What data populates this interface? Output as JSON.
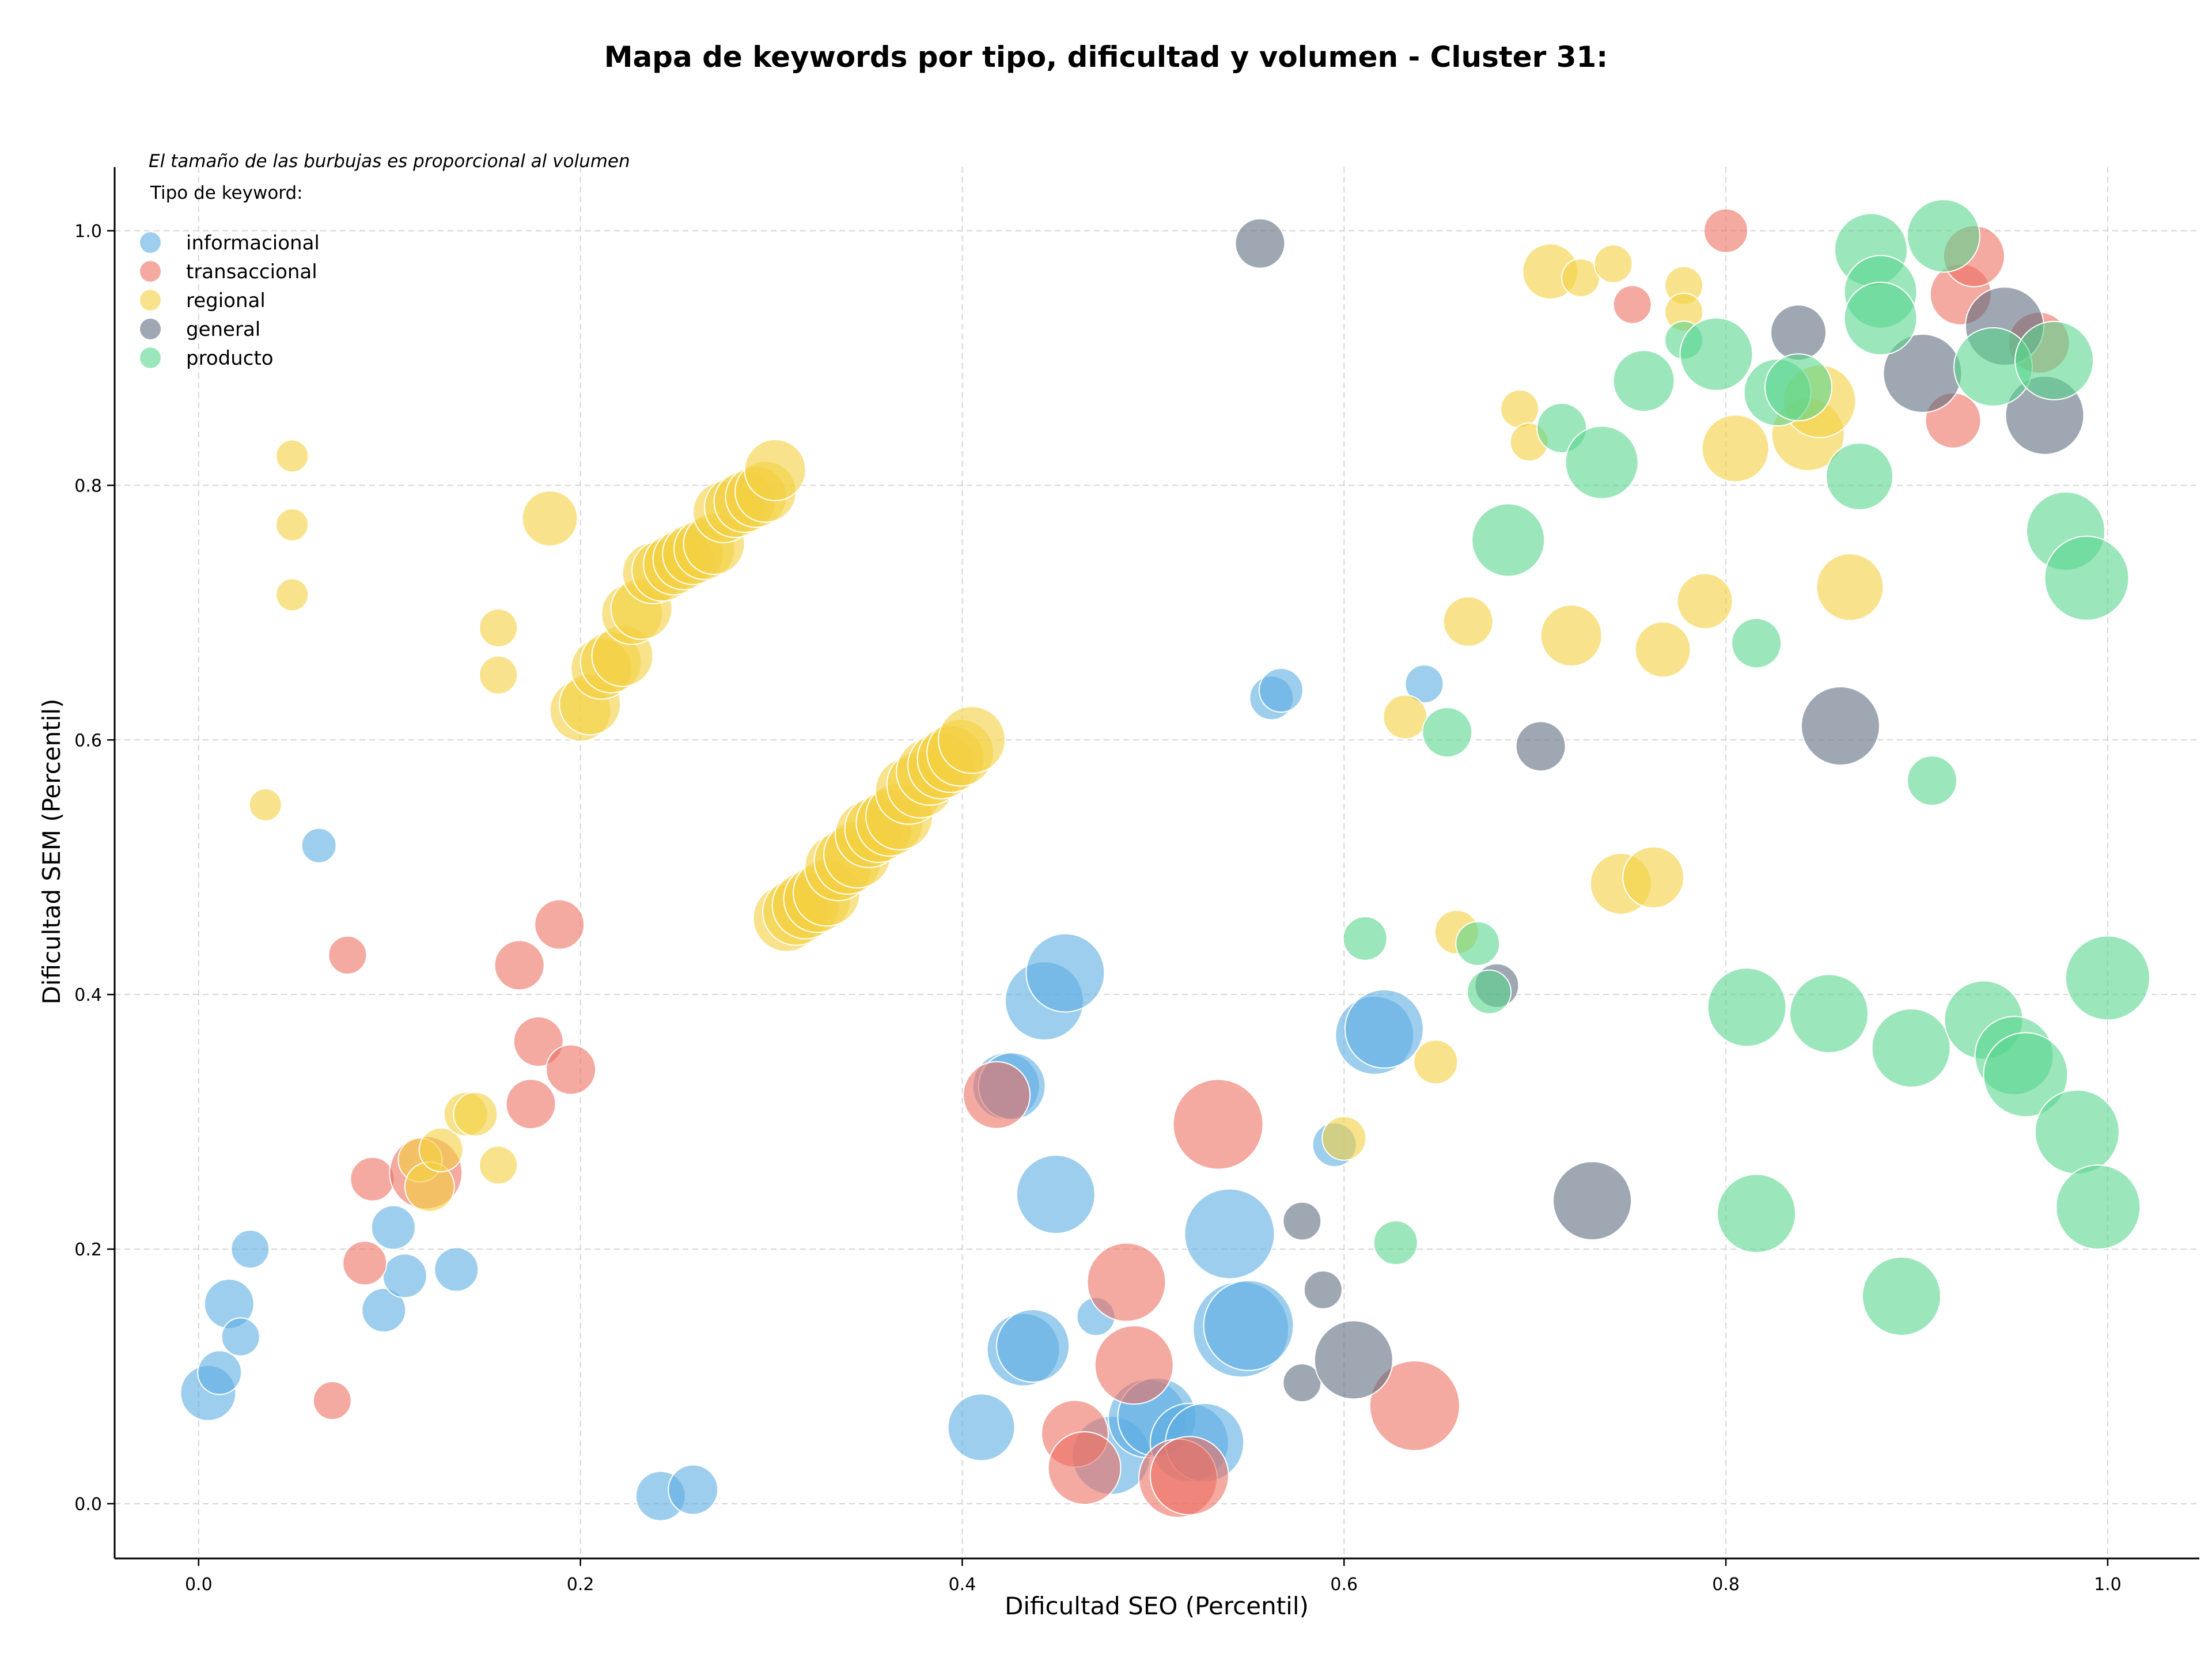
{
  "chart_data": {
    "type": "scatter",
    "title": "Mapa de keywords por tipo, dificultad y volumen - Cluster 31:",
    "xlabel": "Dificultad SEO (Percentil)",
    "ylabel": "Dificultad SEM (Percentil)",
    "xlim": [
      -0.044,
      1.048
    ],
    "ylim": [
      -0.043,
      1.05
    ],
    "xticks": [
      "0.0",
      "0.2",
      "0.4",
      "0.6",
      "0.8",
      "1.0"
    ],
    "yticks": [
      "0.0",
      "0.2",
      "0.4",
      "0.6",
      "0.8",
      "1.0"
    ],
    "grid": true,
    "note": "El tamaño de las burbujas es proporcional al volumen",
    "legend": {
      "title": "Tipo de keyword:",
      "placement": "top-left"
    },
    "series": [
      {
        "name": "informacional",
        "color": "#5DADE2",
        "points": [
          [
            0.005,
            0.087,
            3
          ],
          [
            0.011,
            0.103,
            2
          ],
          [
            0.016,
            0.157,
            2.5
          ],
          [
            0.022,
            0.131,
            1.5
          ],
          [
            0.027,
            0.2,
            1.5
          ],
          [
            0.063,
            0.517,
            1.2
          ],
          [
            0.097,
            0.152,
            2
          ],
          [
            0.102,
            0.217,
            2
          ],
          [
            0.108,
            0.179,
            2
          ],
          [
            0.135,
            0.184,
            2
          ],
          [
            0.242,
            0.006,
            2.5
          ],
          [
            0.259,
            0.011,
            2.5
          ],
          [
            0.41,
            0.06,
            4
          ],
          [
            0.423,
            0.328,
            4
          ],
          [
            0.426,
            0.328,
            4
          ],
          [
            0.432,
            0.121,
            4.5
          ],
          [
            0.437,
            0.124,
            4.5
          ],
          [
            0.443,
            0.395,
            5
          ],
          [
            0.454,
            0.417,
            5
          ],
          [
            0.449,
            0.243,
            5
          ],
          [
            0.47,
            0.147,
            1.5
          ],
          [
            0.478,
            0.038,
            5
          ],
          [
            0.497,
            0.067,
            5
          ],
          [
            0.502,
            0.068,
            5
          ],
          [
            0.519,
            0.048,
            5
          ],
          [
            0.527,
            0.048,
            5
          ],
          [
            0.54,
            0.212,
            6
          ],
          [
            0.546,
            0.137,
            6.5
          ],
          [
            0.55,
            0.14,
            6
          ],
          [
            0.562,
            0.633,
            2
          ],
          [
            0.567,
            0.639,
            2
          ],
          [
            0.595,
            0.282,
            2
          ],
          [
            0.616,
            0.368,
            5
          ],
          [
            0.621,
            0.373,
            5
          ],
          [
            0.642,
            0.644,
            1.5
          ]
        ]
      },
      {
        "name": "transaccional",
        "color": "#EC7063",
        "points": [
          [
            0.07,
            0.081,
            1.5
          ],
          [
            0.078,
            0.431,
            1.5
          ],
          [
            0.087,
            0.189,
            2
          ],
          [
            0.091,
            0.255,
            2
          ],
          [
            0.119,
            0.26,
            4.5
          ],
          [
            0.168,
            0.423,
            2.5
          ],
          [
            0.174,
            0.314,
            2.5
          ],
          [
            0.178,
            0.363,
            2.5
          ],
          [
            0.189,
            0.455,
            2.5
          ],
          [
            0.195,
            0.341,
            2.5
          ],
          [
            0.418,
            0.321,
            4
          ],
          [
            0.459,
            0.055,
            4
          ],
          [
            0.464,
            0.028,
            4.5
          ],
          [
            0.486,
            0.174,
            5
          ],
          [
            0.49,
            0.109,
            5
          ],
          [
            0.513,
            0.02,
            5
          ],
          [
            0.519,
            0.022,
            5
          ],
          [
            0.534,
            0.298,
            6
          ],
          [
            0.637,
            0.077,
            6
          ],
          [
            0.751,
            0.942,
            1.5
          ],
          [
            0.8,
            1.0,
            2
          ],
          [
            0.919,
            0.851,
            3
          ],
          [
            0.923,
            0.95,
            3.5
          ],
          [
            0.93,
            0.98,
            3.5
          ],
          [
            0.964,
            0.912,
            3.5
          ]
        ]
      },
      {
        "name": "regional",
        "color": "#F4D03F",
        "points": [
          [
            0.035,
            0.549,
            1
          ],
          [
            0.049,
            0.823,
            1
          ],
          [
            0.049,
            0.769,
            1
          ],
          [
            0.049,
            0.714,
            1
          ],
          [
            0.116,
            0.27,
            2
          ],
          [
            0.121,
            0.249,
            2.5
          ],
          [
            0.127,
            0.278,
            2
          ],
          [
            0.14,
            0.306,
            2
          ],
          [
            0.145,
            0.306,
            2
          ],
          [
            0.157,
            0.688,
            1.5
          ],
          [
            0.157,
            0.651,
            1.5
          ],
          [
            0.157,
            0.266,
            1.5
          ],
          [
            0.184,
            0.774,
            3
          ],
          [
            0.2,
            0.623,
            3.5
          ],
          [
            0.205,
            0.628,
            3.5
          ],
          [
            0.211,
            0.656,
            3.5
          ],
          [
            0.216,
            0.661,
            3.5
          ],
          [
            0.222,
            0.666,
            3.5
          ],
          [
            0.227,
            0.699,
            3.5
          ],
          [
            0.232,
            0.703,
            3.5
          ],
          [
            0.238,
            0.731,
            3.5
          ],
          [
            0.243,
            0.733,
            3.5
          ],
          [
            0.249,
            0.738,
            3.5
          ],
          [
            0.254,
            0.742,
            3.5
          ],
          [
            0.259,
            0.746,
            3.5
          ],
          [
            0.265,
            0.75,
            3.5
          ],
          [
            0.27,
            0.754,
            3.5
          ],
          [
            0.275,
            0.779,
            3.5
          ],
          [
            0.281,
            0.783,
            3.5
          ],
          [
            0.286,
            0.787,
            3.5
          ],
          [
            0.292,
            0.791,
            3.5
          ],
          [
            0.297,
            0.795,
            3.5
          ],
          [
            0.302,
            0.812,
            3.5
          ],
          [
            0.308,
            0.46,
            4
          ],
          [
            0.313,
            0.465,
            4
          ],
          [
            0.318,
            0.47,
            4
          ],
          [
            0.324,
            0.475,
            4
          ],
          [
            0.329,
            0.48,
            4
          ],
          [
            0.335,
            0.5,
            4
          ],
          [
            0.34,
            0.505,
            4
          ],
          [
            0.345,
            0.51,
            4
          ],
          [
            0.351,
            0.526,
            4
          ],
          [
            0.356,
            0.53,
            4
          ],
          [
            0.362,
            0.535,
            4
          ],
          [
            0.367,
            0.54,
            4
          ],
          [
            0.372,
            0.56,
            4
          ],
          [
            0.378,
            0.565,
            4
          ],
          [
            0.383,
            0.575,
            4
          ],
          [
            0.389,
            0.58,
            4
          ],
          [
            0.394,
            0.585,
            4
          ],
          [
            0.399,
            0.59,
            4
          ],
          [
            0.405,
            0.6,
            4
          ],
          [
            0.6,
            0.287,
            2
          ],
          [
            0.632,
            0.618,
            2
          ],
          [
            0.648,
            0.347,
            2
          ],
          [
            0.659,
            0.449,
            2
          ],
          [
            0.665,
            0.693,
            2.5
          ],
          [
            0.692,
            0.86,
            1.5
          ],
          [
            0.697,
            0.834,
            1.5
          ],
          [
            0.708,
            0.968,
            3
          ],
          [
            0.719,
            0.682,
            3.5
          ],
          [
            0.724,
            0.963,
            1.5
          ],
          [
            0.741,
            0.974,
            1.5
          ],
          [
            0.745,
            0.487,
            3.5
          ],
          [
            0.762,
            0.492,
            3.5
          ],
          [
            0.767,
            0.671,
            3
          ],
          [
            0.778,
            0.957,
            1.5
          ],
          [
            0.778,
            0.936,
            1.5
          ],
          [
            0.789,
            0.709,
            3
          ],
          [
            0.805,
            0.829,
            4
          ],
          [
            0.843,
            0.84,
            4.5
          ],
          [
            0.849,
            0.866,
            4.5
          ],
          [
            0.865,
            0.72,
            4
          ]
        ]
      },
      {
        "name": "general",
        "color": "#5D6D7E",
        "points": [
          [
            0.556,
            0.99,
            2.5
          ],
          [
            0.578,
            0.222,
            1.5
          ],
          [
            0.578,
            0.095,
            1.5
          ],
          [
            0.589,
            0.168,
            1.5
          ],
          [
            0.605,
            0.113,
            5
          ],
          [
            0.68,
            0.407,
            2
          ],
          [
            0.703,
            0.595,
            2.5
          ],
          [
            0.73,
            0.238,
            5
          ],
          [
            0.838,
            0.92,
            3
          ],
          [
            0.86,
            0.611,
            5
          ],
          [
            0.903,
            0.888,
            5
          ],
          [
            0.946,
            0.925,
            5
          ],
          [
            0.967,
            0.855,
            5
          ]
        ]
      },
      {
        "name": "producto",
        "color": "#58D68D",
        "points": [
          [
            0.611,
            0.444,
            2
          ],
          [
            0.627,
            0.205,
            2
          ],
          [
            0.654,
            0.606,
            2.5
          ],
          [
            0.67,
            0.44,
            2
          ],
          [
            0.676,
            0.402,
            2
          ],
          [
            0.686,
            0.757,
            4.5
          ],
          [
            0.714,
            0.845,
            2.5
          ],
          [
            0.735,
            0.818,
            4.5
          ],
          [
            0.757,
            0.882,
            3.5
          ],
          [
            0.778,
            0.914,
            1.5
          ],
          [
            0.795,
            0.903,
            4.5
          ],
          [
            0.816,
            0.676,
            2.5
          ],
          [
            0.811,
            0.39,
            5
          ],
          [
            0.816,
            0.228,
            5
          ],
          [
            0.827,
            0.873,
            4
          ],
          [
            0.838,
            0.877,
            4
          ],
          [
            0.854,
            0.385,
            5
          ],
          [
            0.87,
            0.807,
            4
          ],
          [
            0.876,
            0.985,
            4.5
          ],
          [
            0.881,
            0.952,
            4.5
          ],
          [
            0.881,
            0.931,
            4.5
          ],
          [
            0.892,
            0.163,
            5
          ],
          [
            0.897,
            0.358,
            5
          ],
          [
            0.908,
            0.568,
            2.5
          ],
          [
            0.914,
            0.996,
            4.5
          ],
          [
            0.935,
            0.38,
            5
          ],
          [
            0.94,
            0.893,
            5
          ],
          [
            0.951,
            0.352,
            5
          ],
          [
            0.957,
            0.337,
            5.5
          ],
          [
            0.972,
            0.898,
            5
          ],
          [
            0.978,
            0.764,
            5
          ],
          [
            0.984,
            0.292,
            5.5
          ],
          [
            0.989,
            0.727,
            5.5
          ],
          [
            0.995,
            0.233,
            5.5
          ],
          [
            1.0,
            0.413,
            5.5
          ]
        ]
      }
    ]
  }
}
